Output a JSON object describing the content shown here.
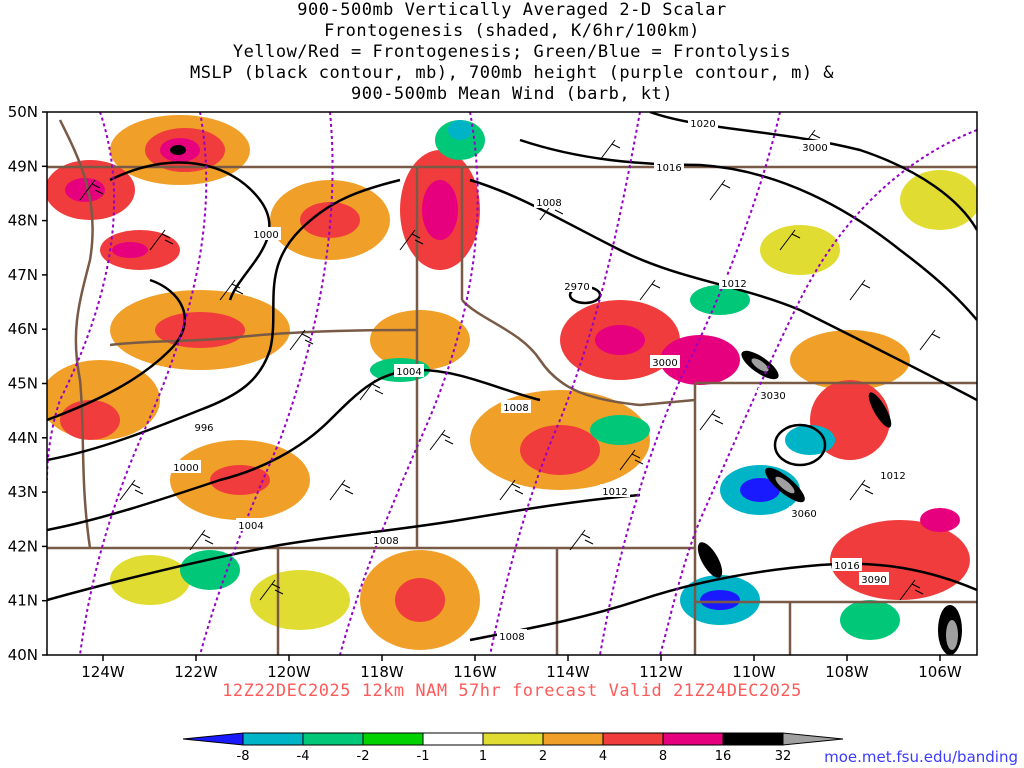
{
  "title_lines": [
    "900-500mb Vertically Averaged 2-D Scalar",
    "Frontogenesis (shaded, K/6hr/100km)",
    "Yellow/Red = Frontogenesis;  Green/Blue = Frontolysis",
    "MSLP (black contour, mb), 700mb height (purple contour, m) &",
    "900-500mb Mean Wind (barb, kt)"
  ],
  "run_info": "12Z22DEC2025 12km NAM 57hr forecast Valid 21Z24DEC2025",
  "credit": "moe.met.fsu.edu/banding",
  "lat_labels": [
    "50N",
    "49N",
    "48N",
    "47N",
    "46N",
    "45N",
    "44N",
    "43N",
    "42N",
    "41N",
    "40N"
  ],
  "lon_labels": [
    "124W",
    "122W",
    "120W",
    "118W",
    "116W",
    "114W",
    "112W",
    "110W",
    "108W",
    "106W"
  ],
  "mslp_labels": [
    "1020",
    "1016",
    "1008",
    "1012",
    "1000",
    "1004",
    "1008",
    "996",
    "1000",
    "1004",
    "1008",
    "1012",
    "1012",
    "1016",
    "1008"
  ],
  "height_labels": [
    "3000",
    "2970",
    "3000",
    "3030",
    "3060",
    "3090"
  ],
  "colorbar": {
    "labels": [
      "-8",
      "-4",
      "-2",
      "-1",
      "1",
      "2",
      "4",
      "8",
      "16",
      "32"
    ],
    "colors": [
      "#1a1aff",
      "#00b4c8",
      "#00c878",
      "#00d200",
      "#ffffff",
      "#e1dc32",
      "#f0a028",
      "#f03c3c",
      "#e6007d",
      "#000000",
      "#a0a0a0"
    ]
  },
  "map_colors": {
    "mslp": "#000000",
    "height": "#9600c8",
    "border": "#785a46",
    "barb": "#000000"
  }
}
